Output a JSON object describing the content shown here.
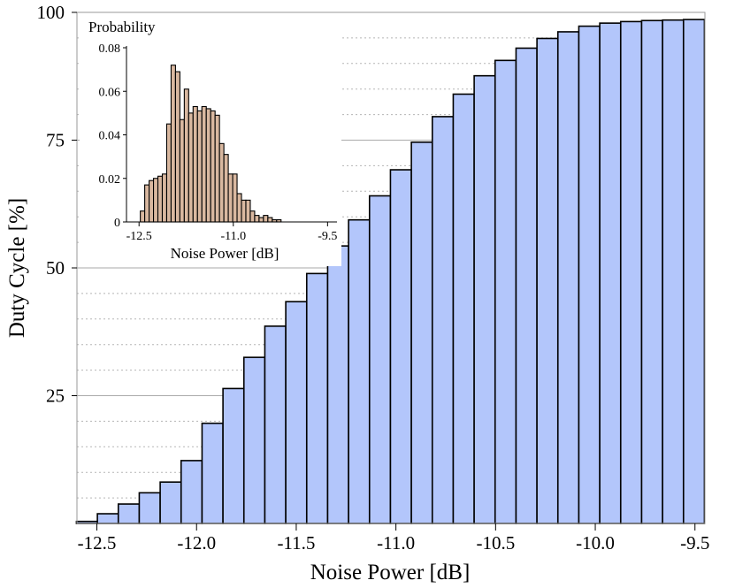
{
  "chart_data": [
    {
      "type": "bar",
      "xlabel": "Noise Power [dB]",
      "ylabel": "Duty Cycle [%]",
      "xlim": [
        -12.6,
        -9.45
      ],
      "ylim": [
        0,
        100
      ],
      "x_ticks": [
        -12.5,
        -12.0,
        -11.5,
        -11.0,
        -10.5,
        -10.0,
        -9.5
      ],
      "x_tick_labels": [
        "-12.5",
        "-12.0",
        "-11.5",
        "-11.0",
        "-10.5",
        "-10.0",
        "-9.5"
      ],
      "y_ticks": [
        25,
        50,
        75,
        100
      ],
      "y_tick_labels": [
        "25",
        "50",
        "75",
        "100"
      ],
      "grid": true,
      "bar_color": "#b3c6fb",
      "bin_width": 0.105,
      "x": [
        -12.55,
        -12.445,
        -12.34,
        -12.235,
        -12.13,
        -12.025,
        -11.92,
        -11.815,
        -11.71,
        -11.605,
        -11.5,
        -11.395,
        -11.29,
        -11.185,
        -11.08,
        -10.975,
        -10.87,
        -10.765,
        -10.66,
        -10.555,
        -10.45,
        -10.345,
        -10.24,
        -10.135,
        -10.03,
        -9.925,
        -9.82,
        -9.715,
        -9.61,
        -9.505
      ],
      "values": [
        0.4,
        1.9,
        3.8,
        6.0,
        8.1,
        12.3,
        19.6,
        26.4,
        32.5,
        38.6,
        43.4,
        48.9,
        54.3,
        59.4,
        64.1,
        69.2,
        74.6,
        79.6,
        84.0,
        87.6,
        90.6,
        93.0,
        94.9,
        96.2,
        97.3,
        97.9,
        98.2,
        98.4,
        98.5,
        98.6
      ]
    },
    {
      "type": "bar",
      "title": "Probability",
      "xlabel": "Noise Power [dB]",
      "xlim": [
        -12.7,
        -9.35
      ],
      "ylim": [
        0,
        0.08
      ],
      "x_ticks": [
        -12.5,
        -11.0,
        -9.5
      ],
      "x_tick_labels": [
        "-12.5",
        "-11.0",
        "-9.5"
      ],
      "y_ticks": [
        0,
        0.02,
        0.04,
        0.06,
        0.08
      ],
      "y_tick_labels": [
        "0",
        "0.02",
        "0.04",
        "0.06",
        "0.08"
      ],
      "bar_color": "#d9b8a0",
      "bin_width": 0.07,
      "x": [
        -12.445,
        -12.375,
        -12.305,
        -12.235,
        -12.165,
        -12.095,
        -12.025,
        -11.955,
        -11.885,
        -11.815,
        -11.745,
        -11.675,
        -11.605,
        -11.535,
        -11.465,
        -11.395,
        -11.325,
        -11.255,
        -11.185,
        -11.115,
        -11.045,
        -10.975,
        -10.905,
        -10.835,
        -10.765,
        -10.695,
        -10.625,
        -10.555,
        -10.485,
        -10.415,
        -10.345,
        -10.275
      ],
      "values": [
        0.005,
        0.017,
        0.019,
        0.02,
        0.021,
        0.022,
        0.045,
        0.072,
        0.069,
        0.047,
        0.061,
        0.05,
        0.053,
        0.051,
        0.053,
        0.052,
        0.051,
        0.049,
        0.036,
        0.031,
        0.022,
        0.022,
        0.013,
        0.01,
        0.01,
        0.005,
        0.003,
        0.002,
        0.003,
        0.002,
        0.001,
        0.001
      ]
    }
  ]
}
